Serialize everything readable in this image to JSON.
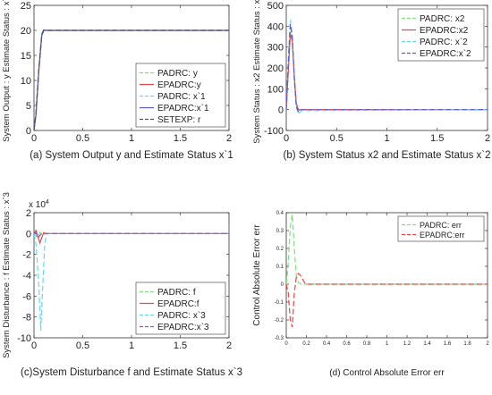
{
  "chart_data": [
    {
      "type": "line",
      "caption": "(a)  System Output y and Estimate Status x`1",
      "ylabel": "System Output : y    Estimate Status : x`1",
      "xlim": [
        0,
        2
      ],
      "ylim": [
        0,
        25
      ],
      "xticks": [
        "0",
        "0.5",
        "1",
        "1.5",
        "2"
      ],
      "yticks": [
        "0",
        "5",
        "10",
        "15",
        "20",
        "25"
      ],
      "xtick_values": [
        0,
        0.5,
        1,
        1.5,
        2
      ],
      "ytick_values": [
        0,
        5,
        10,
        15,
        20,
        25
      ],
      "legend_position": "bottom-right",
      "series": [
        {
          "name": "PADRC: y",
          "color": "#7ee07e",
          "dash": "6,3",
          "x": [
            0,
            0.02,
            0.05,
            0.08,
            0.1,
            0.12,
            2
          ],
          "y": [
            0,
            3,
            12,
            19,
            20,
            20,
            20
          ]
        },
        {
          "name": "EPADRC:y",
          "color": "#ee4444",
          "dash": "",
          "x": [
            0,
            0.02,
            0.05,
            0.08,
            0.1,
            0.12,
            2
          ],
          "y": [
            0,
            3,
            12,
            19,
            20,
            20,
            20
          ]
        },
        {
          "name": "PADRC: x`1",
          "color": "#66d9f2",
          "dash": "6,3",
          "x": [
            0,
            0.02,
            0.05,
            0.08,
            0.1,
            0.12,
            2
          ],
          "y": [
            0,
            3.5,
            12.5,
            19.5,
            20.2,
            20,
            20
          ]
        },
        {
          "name": "EPADRC:x`1",
          "color": "#5b5bd6",
          "dash": "",
          "x": [
            0,
            0.02,
            0.05,
            0.08,
            0.1,
            0.12,
            2
          ],
          "y": [
            0,
            3.2,
            12.2,
            19.2,
            20.1,
            20,
            20
          ]
        },
        {
          "name": "SETEXP: r",
          "color": "#555555",
          "dash": "6,3",
          "x": [
            0,
            0.02,
            0.05,
            0.08,
            0.1,
            0.12,
            2
          ],
          "y": [
            0,
            3.5,
            12.5,
            19,
            20,
            20,
            20
          ]
        }
      ]
    },
    {
      "type": "line",
      "caption": "(b)  System Status x2 and Estimate Status x`2",
      "ylabel": "System Status : x2     Estimate Status : x`2",
      "xlim": [
        0,
        2
      ],
      "ylim": [
        -100,
        500
      ],
      "xticks": [
        "0",
        "0.5",
        "1",
        "1.5",
        "2"
      ],
      "yticks": [
        "-100",
        "0",
        "100",
        "200",
        "300",
        "400",
        "500"
      ],
      "xtick_values": [
        0,
        0.5,
        1,
        1.5,
        2
      ],
      "ytick_values": [
        -100,
        0,
        100,
        200,
        300,
        400,
        500
      ],
      "legend_position": "top-right",
      "series": [
        {
          "name": "PADRC: x2",
          "color": "#7ee07e",
          "dash": "6,3",
          "x": [
            0,
            0.02,
            0.04,
            0.06,
            0.08,
            0.1,
            0.12,
            0.15,
            2
          ],
          "y": [
            0,
            200,
            380,
            340,
            150,
            20,
            -5,
            0,
            0
          ]
        },
        {
          "name": "EPADRC:x2",
          "color": "#ee4444",
          "dash": "",
          "x": [
            0,
            0.02,
            0.04,
            0.06,
            0.08,
            0.1,
            0.12,
            0.15,
            2
          ],
          "y": [
            0,
            180,
            360,
            330,
            160,
            30,
            0,
            0,
            0
          ]
        },
        {
          "name": "PADRC: x`2",
          "color": "#66d9f2",
          "dash": "6,3",
          "x": [
            0,
            0.02,
            0.04,
            0.06,
            0.08,
            0.1,
            0.12,
            0.15,
            2
          ],
          "y": [
            0,
            240,
            430,
            360,
            140,
            10,
            -20,
            -5,
            0
          ]
        },
        {
          "name": "EPADRC:x`2",
          "color": "#5b5bd6",
          "dash": "6,3",
          "x": [
            0,
            0.02,
            0.04,
            0.06,
            0.08,
            0.1,
            0.12,
            0.15,
            2
          ],
          "y": [
            0,
            220,
            410,
            350,
            150,
            15,
            -10,
            0,
            0
          ]
        }
      ]
    },
    {
      "type": "line",
      "caption": "(c)System Disturbance f and Estimate Status x`3",
      "ylabel": "System Disturbance : f     Estimate Status : x`3",
      "exponent_label": "x 10",
      "exponent_power": "4",
      "xlim": [
        0,
        2
      ],
      "ylim": [
        -10,
        2
      ],
      "xticks": [
        "0",
        "0.5",
        "1",
        "1.5",
        "2"
      ],
      "yticks": [
        "-10",
        "-8",
        "-6",
        "-4",
        "-2",
        "0",
        "2"
      ],
      "xtick_values": [
        0,
        0.5,
        1,
        1.5,
        2
      ],
      "ytick_values": [
        -10,
        -8,
        -6,
        -4,
        -2,
        0,
        2
      ],
      "legend_position": "bottom-right",
      "series": [
        {
          "name": "PADRC: f",
          "color": "#7ee07e",
          "dash": "6,3",
          "x": [
            0,
            0.02,
            0.04,
            0.06,
            0.08,
            0.1,
            0.12,
            2
          ],
          "y": [
            0,
            -0.2,
            -0.4,
            0.1,
            0,
            -0.1,
            0,
            0
          ]
        },
        {
          "name": "EPADRC:f",
          "color": "#ee4444",
          "dash": "",
          "x": [
            0,
            0.02,
            0.04,
            0.06,
            0.08,
            0.1,
            0.12,
            2
          ],
          "y": [
            0,
            0.3,
            -0.3,
            -0.9,
            -0.4,
            0.1,
            0,
            0
          ]
        },
        {
          "name": "PADRC: x`3",
          "color": "#66d9f2",
          "dash": "6,3",
          "x": [
            0,
            0.02,
            0.05,
            0.07,
            0.09,
            0.11,
            0.13,
            2
          ],
          "y": [
            0,
            -1,
            -5,
            -9.3,
            -5,
            -1,
            0,
            0
          ]
        },
        {
          "name": "EPADRC:x`3",
          "color": "#8855dd",
          "dash": "6,3",
          "x": [
            0,
            0.02,
            0.04,
            0.06,
            0.08,
            0.1,
            0.12,
            2
          ],
          "y": [
            0,
            0.1,
            -0.4,
            -0.2,
            0,
            0,
            0,
            0
          ]
        }
      ]
    },
    {
      "type": "line",
      "caption": "(d)  Control Absolute Error err",
      "ylabel": "Control Absolute Error err",
      "xlim": [
        0,
        2
      ],
      "ylim": [
        -0.3,
        0.4
      ],
      "xticks": [
        "0",
        "0.2",
        "0.4",
        "0.6",
        "0.8",
        "1",
        "1.2",
        "1.4",
        "1.6",
        "1.8",
        "2"
      ],
      "yticks": [
        "-0.3",
        "-0.2",
        "-0.1",
        "0",
        "0.1",
        "0.2",
        "0.3",
        "0.4"
      ],
      "xtick_values": [
        0,
        0.2,
        0.4,
        0.6,
        0.8,
        1,
        1.2,
        1.4,
        1.6,
        1.8,
        2
      ],
      "ytick_values": [
        -0.3,
        -0.2,
        -0.1,
        0,
        0.1,
        0.2,
        0.3,
        0.4
      ],
      "legend_position": "top-right",
      "series": [
        {
          "name": "PADRC: err",
          "color": "#7ee07e",
          "dash": "6,3",
          "x": [
            0,
            0.02,
            0.04,
            0.06,
            0.08,
            0.1,
            0.12,
            0.15,
            0.2,
            2
          ],
          "y": [
            0,
            0.12,
            0.32,
            0.39,
            0.2,
            0.05,
            0.01,
            0,
            0,
            0
          ]
        },
        {
          "name": "EPADRC:err",
          "color": "#ee4444",
          "dash": "6,3",
          "x": [
            0,
            0.02,
            0.04,
            0.06,
            0.08,
            0.1,
            0.12,
            0.14,
            0.18,
            0.2,
            2
          ],
          "y": [
            0,
            -0.05,
            -0.2,
            -0.24,
            -0.05,
            0.04,
            0.06,
            0.05,
            0.01,
            0,
            0
          ]
        }
      ]
    }
  ]
}
